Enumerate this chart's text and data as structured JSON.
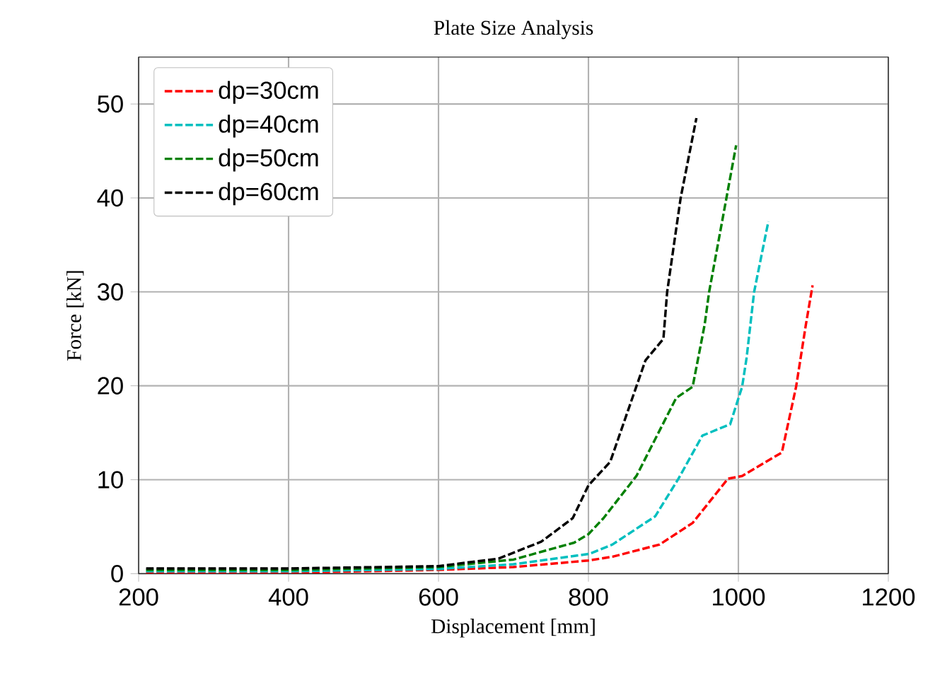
{
  "chart_data": {
    "type": "line",
    "title": "Plate Size Analysis",
    "xlabel": "Displacement [mm]",
    "ylabel": "Force [kN]",
    "xlim": [
      200,
      1200
    ],
    "ylim": [
      0,
      55
    ],
    "xticks": [
      200,
      400,
      600,
      800,
      1000,
      1200
    ],
    "yticks": [
      0,
      10,
      20,
      30,
      40,
      50
    ],
    "grid": true,
    "legend": "top left",
    "line_style": "dashed",
    "marker": "none",
    "series": [
      {
        "name": "dp=30cm",
        "color": "#ff0000",
        "x": [
          210,
          400,
          600,
          700,
          800,
          832,
          895,
          939,
          986,
          1005,
          1058,
          1077,
          1090,
          1099
        ],
        "values": [
          0.1,
          0.1,
          0.4,
          0.7,
          1.4,
          1.8,
          3.1,
          5.4,
          10.1,
          10.4,
          12.9,
          19.9,
          26.5,
          30.7
        ]
      },
      {
        "name": "dp=40cm",
        "color": "#00bfbf",
        "x": [
          210,
          400,
          600,
          700,
          801,
          832,
          889,
          920,
          952,
          989,
          1005,
          1011,
          1021,
          1040
        ],
        "values": [
          0.25,
          0.25,
          0.5,
          1.0,
          2.1,
          3.1,
          6.1,
          10.1,
          14.7,
          15.9,
          19.9,
          23,
          30,
          37.5
        ]
      },
      {
        "name": "dp=50cm",
        "color": "#008000",
        "x": [
          210,
          400,
          600,
          700,
          781,
          800,
          820,
          864,
          917,
          939,
          955,
          961,
          997
        ],
        "values": [
          0.4,
          0.4,
          0.7,
          1.5,
          3.3,
          4.2,
          5.9,
          10.4,
          18.7,
          19.9,
          26.5,
          30,
          45.6
        ]
      },
      {
        "name": "dp=60cm",
        "color": "#000000",
        "x": [
          210,
          400,
          600,
          680,
          737,
          779,
          800,
          829,
          876,
          900,
          905,
          923,
          944
        ],
        "values": [
          0.55,
          0.55,
          0.8,
          1.6,
          3.4,
          5.9,
          9.4,
          11.9,
          22.7,
          25,
          30,
          40,
          48.5
        ]
      }
    ]
  }
}
